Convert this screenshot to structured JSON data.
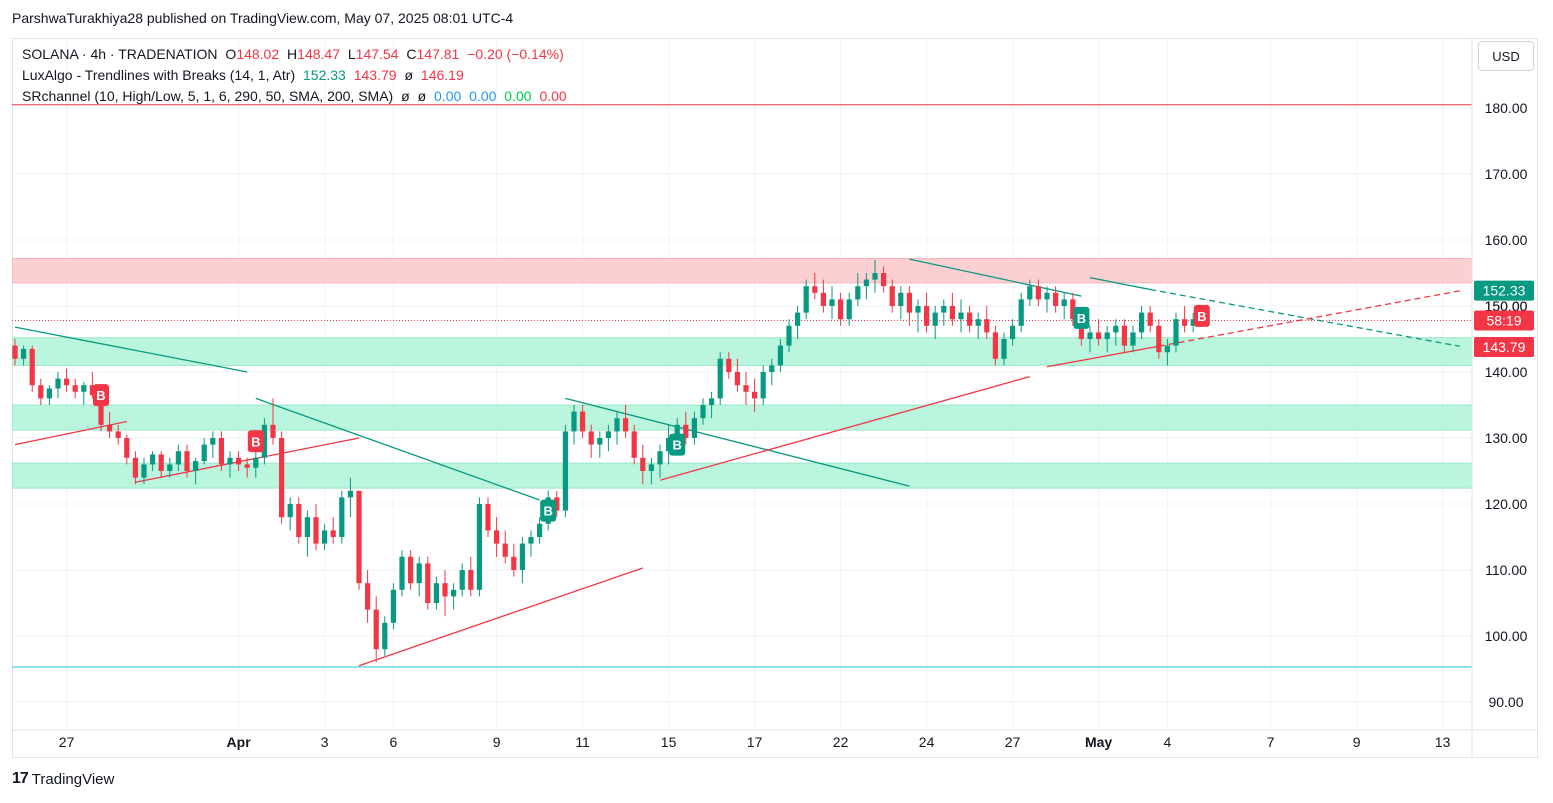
{
  "header": {
    "publisher": "ParshwaTurakhiya28 published on TradingView.com, May 07, 2025 08:01 UTC-4"
  },
  "legend": {
    "symbol_line": {
      "symbol": "SOLANA · 4h · TRADENATION",
      "o_label": "O",
      "o": "148.02",
      "h_label": "H",
      "h": "148.47",
      "l_label": "L",
      "l": "147.54",
      "c_label": "C",
      "c": "147.81",
      "chg": "−0.20 (−0.14%)"
    },
    "luxalgo": {
      "name": "LuxAlgo - Trendlines with Breaks (14, 1, Atr)",
      "v1": "152.33",
      "v2": "143.79",
      "v3": "ø",
      "v4": "146.19"
    },
    "srchannel": {
      "name": "SRchannel (10, High/Low, 5, 1, 6, 290, 50, SMA, 200, SMA)",
      "v1": "ø",
      "v2": "ø",
      "v3": "0.00",
      "v4": "0.00",
      "v5": "0.00",
      "v6": "0.00"
    }
  },
  "currency_button": "USD",
  "footer": {
    "brand": "TradingView",
    "logo_mark": "17"
  },
  "colors": {
    "up": "#089981",
    "down": "#f23645",
    "support_zone": "#b9f6dd",
    "resistance_zone": "#fccfd2",
    "trend_up": "#f23645",
    "trend_down": "#089981"
  },
  "chart_data": {
    "type": "candlestick",
    "ylim": [
      87,
      187
    ],
    "y_ticks": [
      "90.00",
      "100.00",
      "110.00",
      "120.00",
      "130.00",
      "140.00",
      "150.00",
      "160.00",
      "170.00",
      "180.00"
    ],
    "x_ticks": [
      {
        "label": "27",
        "idx": 6,
        "bold": false
      },
      {
        "label": "Apr",
        "idx": 26,
        "bold": true
      },
      {
        "label": "3",
        "idx": 36,
        "bold": false
      },
      {
        "label": "6",
        "idx": 44,
        "bold": false
      },
      {
        "label": "9",
        "idx": 56,
        "bold": false
      },
      {
        "label": "11",
        "idx": 66,
        "bold": false
      },
      {
        "label": "15",
        "idx": 76,
        "bold": false
      },
      {
        "label": "17",
        "idx": 86,
        "bold": false
      },
      {
        "label": "22",
        "idx": 96,
        "bold": false
      },
      {
        "label": "24",
        "idx": 106,
        "bold": false
      },
      {
        "label": "27",
        "idx": 116,
        "bold": false
      },
      {
        "label": "May",
        "idx": 126,
        "bold": true
      },
      {
        "label": "4",
        "idx": 134,
        "bold": false
      },
      {
        "label": "7",
        "idx": 146,
        "bold": false
      },
      {
        "label": "9",
        "idx": 156,
        "bold": false
      },
      {
        "label": "13",
        "idx": 166,
        "bold": false
      }
    ],
    "x_total": 171,
    "price_labels": [
      {
        "value": 152.33,
        "text": "152.33",
        "color": "#089981"
      },
      {
        "value": 147.81,
        "text": "58:19",
        "color": "#f23645"
      },
      {
        "value": 143.79,
        "text": "143.79",
        "color": "#f23645"
      }
    ],
    "partial_label": {
      "value": 150,
      "text": "150.00"
    },
    "zones": [
      {
        "lo": 153.5,
        "hi": 157.2,
        "kind": "resistance"
      },
      {
        "lo": 141.0,
        "hi": 145.2,
        "kind": "support"
      },
      {
        "lo": 131.2,
        "hi": 135.0,
        "kind": "support"
      },
      {
        "lo": 122.4,
        "hi": 126.2,
        "kind": "support"
      }
    ],
    "h_lines": [
      {
        "value": 180.5,
        "color": "#f23645"
      },
      {
        "value": 95.3,
        "color": "#26c6da"
      }
    ],
    "last_price_line": 147.81,
    "trendlines": [
      {
        "x1": 0,
        "y1": 146.8,
        "x2": 27,
        "y2": 140.0,
        "color": "#089981",
        "dash": false
      },
      {
        "x1": 0,
        "y1": 129.0,
        "x2": 13,
        "y2": 132.5,
        "color": "#f23645",
        "dash": false
      },
      {
        "x1": 14,
        "y1": 123.3,
        "x2": 40,
        "y2": 130.0,
        "color": "#f23645",
        "dash": false
      },
      {
        "x1": 28,
        "y1": 136.0,
        "x2": 61,
        "y2": 120.6,
        "color": "#089981",
        "dash": false
      },
      {
        "x1": 40,
        "y1": 95.5,
        "x2": 73,
        "y2": 110.3,
        "color": "#f23645",
        "dash": false
      },
      {
        "x1": 64,
        "y1": 136.0,
        "x2": 104,
        "y2": 122.7,
        "color": "#089981",
        "dash": false
      },
      {
        "x1": 75,
        "y1": 123.6,
        "x2": 118,
        "y2": 139.3,
        "color": "#f23645",
        "dash": false
      },
      {
        "x1": 104,
        "y1": 157.1,
        "x2": 124,
        "y2": 151.5,
        "color": "#089981",
        "dash": false
      },
      {
        "x1": 120,
        "y1": 140.8,
        "x2": 133,
        "y2": 143.9,
        "color": "#f23645",
        "dash": false
      },
      {
        "x1": 125,
        "y1": 154.3,
        "x2": 132,
        "y2": 152.5,
        "color": "#089981",
        "dash": false
      },
      {
        "x1": 132,
        "y1": 152.5,
        "x2": 168,
        "y2": 143.9,
        "color": "#089981",
        "dash": true
      },
      {
        "x1": 133,
        "y1": 143.9,
        "x2": 168,
        "y2": 152.3,
        "color": "#f23645",
        "dash": true
      }
    ],
    "markers": [
      {
        "idx": 10,
        "value": 136.5,
        "text": "B",
        "color": "#f23645"
      },
      {
        "idx": 28,
        "value": 129.5,
        "text": "B",
        "color": "#f23645"
      },
      {
        "idx": 62,
        "value": 119.0,
        "text": "B",
        "color": "#089981"
      },
      {
        "idx": 77,
        "value": 129.0,
        "text": "B",
        "color": "#089981"
      },
      {
        "idx": 124,
        "value": 148.2,
        "text": "B",
        "color": "#089981"
      },
      {
        "idx": 138,
        "value": 148.5,
        "text": "B",
        "color": "#f23645"
      }
    ],
    "ohlc": [
      [
        144,
        145,
        141,
        142
      ],
      [
        142,
        144,
        141,
        143.5
      ],
      [
        143.5,
        144,
        137,
        138
      ],
      [
        138,
        139,
        135,
        136
      ],
      [
        136,
        138,
        135,
        137.5
      ],
      [
        137.5,
        140,
        136,
        139
      ],
      [
        139,
        140.5,
        137,
        138
      ],
      [
        138,
        139,
        136,
        137
      ],
      [
        137,
        138.5,
        135,
        138
      ],
      [
        138,
        140,
        136,
        136.5
      ],
      [
        136.5,
        137,
        131,
        132
      ],
      [
        132,
        134,
        130,
        131
      ],
      [
        131,
        132,
        129,
        130
      ],
      [
        130,
        130.5,
        126,
        127
      ],
      [
        127,
        128,
        123,
        124
      ],
      [
        124,
        127,
        123,
        126
      ],
      [
        126,
        128,
        125,
        127.5
      ],
      [
        127.5,
        128,
        124,
        125
      ],
      [
        125,
        127,
        124,
        126
      ],
      [
        126,
        129,
        125,
        128
      ],
      [
        128,
        129,
        124,
        125
      ],
      [
        125,
        127,
        123,
        126.5
      ],
      [
        126.5,
        130,
        126,
        129
      ],
      [
        129,
        131,
        127,
        130
      ],
      [
        130,
        131,
        125,
        126
      ],
      [
        126,
        128,
        124,
        127
      ],
      [
        127,
        128,
        125,
        126
      ],
      [
        126,
        127,
        124,
        125.5
      ],
      [
        125.5,
        128,
        124,
        127
      ],
      [
        127,
        133,
        126,
        132
      ],
      [
        132,
        136,
        129,
        130
      ],
      [
        130,
        131,
        117,
        118
      ],
      [
        118,
        121,
        116,
        120
      ],
      [
        120,
        121,
        114,
        115
      ],
      [
        115,
        119,
        112,
        118
      ],
      [
        118,
        120,
        113,
        114
      ],
      [
        114,
        117,
        113,
        116
      ],
      [
        116,
        118,
        114,
        115
      ],
      [
        115,
        122,
        114,
        121
      ],
      [
        121,
        124,
        118,
        122
      ],
      [
        122,
        122,
        107,
        108
      ],
      [
        108,
        110,
        102,
        104
      ],
      [
        104,
        106,
        96,
        98
      ],
      [
        98,
        103,
        97,
        102
      ],
      [
        102,
        108,
        101,
        107
      ],
      [
        107,
        113,
        106,
        112
      ],
      [
        112,
        113,
        107,
        108
      ],
      [
        108,
        112,
        106,
        111
      ],
      [
        111,
        112,
        104,
        105
      ],
      [
        105,
        109,
        104,
        108
      ],
      [
        108,
        110,
        103,
        106
      ],
      [
        106,
        108,
        104,
        107
      ],
      [
        107,
        111,
        106,
        110
      ],
      [
        110,
        112,
        106,
        107
      ],
      [
        107,
        121,
        106,
        120
      ],
      [
        120,
        121,
        115,
        116
      ],
      [
        116,
        118,
        112,
        114
      ],
      [
        114,
        116,
        111,
        112
      ],
      [
        112,
        114,
        109,
        110
      ],
      [
        110,
        115,
        108,
        114
      ],
      [
        114,
        116,
        112,
        115
      ],
      [
        115,
        118,
        114,
        117
      ],
      [
        117,
        122,
        116,
        121
      ],
      [
        121,
        122,
        118,
        119
      ],
      [
        119,
        132,
        118,
        131
      ],
      [
        131,
        135,
        129,
        134
      ],
      [
        134,
        135,
        130,
        131
      ],
      [
        131,
        132,
        127,
        129
      ],
      [
        129,
        131,
        127,
        130
      ],
      [
        130,
        132,
        128,
        131
      ],
      [
        131,
        134,
        129,
        133
      ],
      [
        133,
        135,
        130,
        131
      ],
      [
        131,
        132,
        126,
        127
      ],
      [
        127,
        129,
        123,
        125
      ],
      [
        125,
        127,
        123,
        126
      ],
      [
        126,
        129,
        124,
        128
      ],
      [
        128,
        132,
        126,
        130
      ],
      [
        130,
        133,
        128,
        132
      ],
      [
        132,
        134,
        129,
        130
      ],
      [
        130,
        134,
        129,
        133
      ],
      [
        133,
        136,
        132,
        135
      ],
      [
        135,
        137,
        133,
        136
      ],
      [
        136,
        143,
        135,
        142
      ],
      [
        142,
        143,
        139,
        140
      ],
      [
        140,
        142,
        137,
        138
      ],
      [
        138,
        140,
        135,
        137
      ],
      [
        137,
        139,
        134,
        136
      ],
      [
        136,
        141,
        135,
        140
      ],
      [
        140,
        142,
        138,
        141
      ],
      [
        141,
        145,
        140,
        144
      ],
      [
        144,
        148,
        143,
        147
      ],
      [
        147,
        150,
        145,
        149
      ],
      [
        149,
        154,
        148,
        153
      ],
      [
        153,
        155,
        151,
        152
      ],
      [
        152,
        154,
        149,
        150
      ],
      [
        150,
        153,
        148,
        151
      ],
      [
        151,
        152,
        147,
        148
      ],
      [
        148,
        152,
        147,
        151
      ],
      [
        151,
        155,
        150,
        153
      ],
      [
        153,
        155,
        151,
        154
      ],
      [
        154,
        157,
        152,
        155
      ],
      [
        155,
        156,
        152,
        153
      ],
      [
        153,
        154,
        149,
        150
      ],
      [
        150,
        153,
        148,
        152
      ],
      [
        152,
        153,
        147,
        149
      ],
      [
        149,
        151,
        146,
        150
      ],
      [
        150,
        152,
        146,
        147
      ],
      [
        147,
        150,
        145,
        149
      ],
      [
        149,
        151,
        147,
        150
      ],
      [
        150,
        152,
        147,
        148
      ],
      [
        148,
        151,
        146,
        149
      ],
      [
        149,
        150,
        146,
        147
      ],
      [
        147,
        149,
        145,
        148
      ],
      [
        148,
        150,
        145,
        146
      ],
      [
        146,
        147,
        141,
        142
      ],
      [
        142,
        146,
        141,
        145
      ],
      [
        145,
        148,
        144,
        147
      ],
      [
        147,
        152,
        146,
        151
      ],
      [
        151,
        154,
        150,
        153
      ],
      [
        153,
        154,
        150,
        151
      ],
      [
        151,
        153,
        149,
        152
      ],
      [
        152,
        153,
        149,
        150
      ],
      [
        150,
        152,
        148,
        151
      ],
      [
        151,
        152,
        147,
        148
      ],
      [
        148,
        149,
        144,
        145
      ],
      [
        145,
        147,
        143,
        146
      ],
      [
        146,
        148,
        144,
        145
      ],
      [
        145,
        147,
        143,
        146
      ],
      [
        146,
        148,
        144,
        147
      ],
      [
        147,
        148,
        143,
        144
      ],
      [
        144,
        147,
        143,
        146
      ],
      [
        146,
        150,
        145,
        149
      ],
      [
        149,
        150,
        146,
        147
      ],
      [
        147,
        148,
        142,
        143
      ],
      [
        143,
        145,
        141,
        144
      ],
      [
        144,
        149,
        143,
        148
      ],
      [
        148,
        150,
        146,
        147
      ],
      [
        147,
        149,
        146,
        148
      ],
      [
        148,
        148.5,
        147.5,
        147.8
      ]
    ]
  }
}
